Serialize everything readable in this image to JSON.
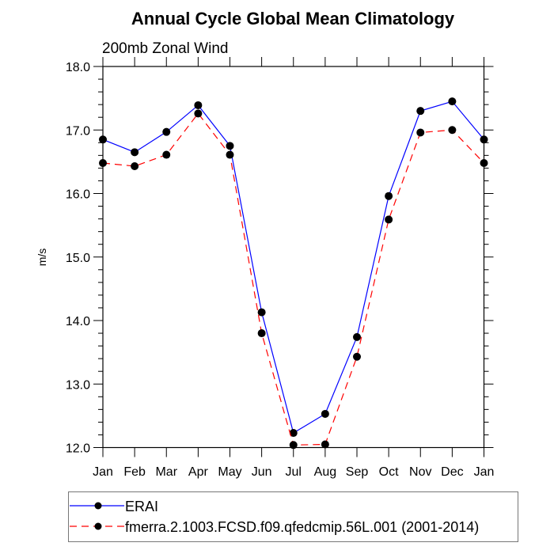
{
  "chart_data": {
    "type": "line",
    "title": "Annual Cycle Global Mean Climatology",
    "subtitle": "200mb Zonal Wind",
    "xlabel": "",
    "ylabel": "m/s",
    "categories": [
      "Jan",
      "Feb",
      "Mar",
      "Apr",
      "May",
      "Jun",
      "Jul",
      "Aug",
      "Sep",
      "Oct",
      "Nov",
      "Dec",
      "Jan"
    ],
    "ylim": [
      12.0,
      18.0
    ],
    "yticks": [
      "12.0",
      "13.0",
      "14.0",
      "15.0",
      "16.0",
      "17.0",
      "18.0"
    ],
    "y_minor_step": 0.2,
    "grid": false,
    "legend_position": "bottom",
    "series": [
      {
        "name": "ERAI",
        "color": "#0000ff",
        "dash": "solid",
        "marker": "filled-circle",
        "values": [
          16.85,
          16.65,
          16.97,
          17.39,
          16.75,
          14.13,
          12.23,
          12.53,
          13.74,
          15.96,
          17.3,
          17.45,
          16.85
        ]
      },
      {
        "name": "fmerra.2.1003.FCSD.f09.qfedcmip.56L.001 (2001-2014)",
        "color": "#ff0000",
        "dash": "dashed",
        "marker": "filled-circle",
        "values": [
          16.48,
          16.43,
          16.61,
          17.26,
          16.61,
          13.8,
          12.04,
          12.05,
          13.43,
          15.59,
          16.96,
          17.0,
          16.48
        ]
      }
    ]
  }
}
